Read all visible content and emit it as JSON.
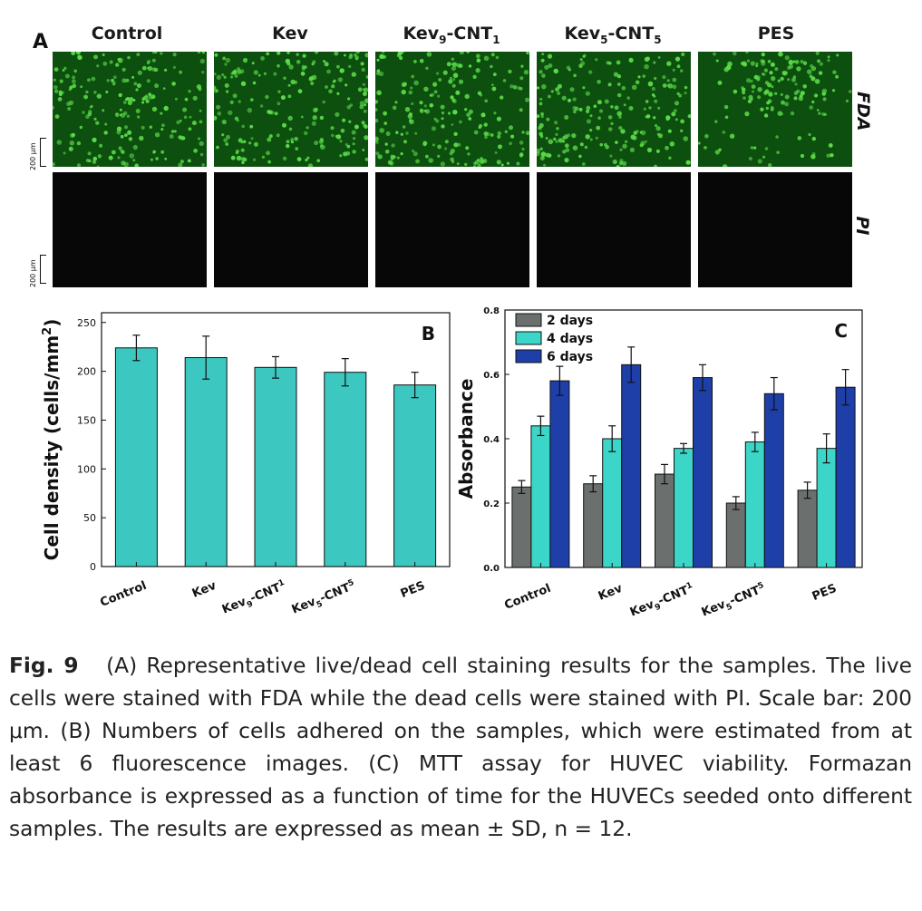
{
  "panel_a": {
    "letter": "A",
    "columns": [
      {
        "main": "Control",
        "sub": "",
        "tail": ""
      },
      {
        "main": "Kev",
        "sub": "",
        "tail": ""
      },
      {
        "main": "Kev",
        "sub": "9",
        "tail": "-CNT",
        "sub2": "1"
      },
      {
        "main": "Kev",
        "sub": "5",
        "tail": "-CNT",
        "sub2": "5"
      },
      {
        "main": "PES",
        "sub": "",
        "tail": ""
      }
    ],
    "row_labels": {
      "fda": "FDA",
      "pi": "PI"
    },
    "scale_label": "200 μm",
    "colors": {
      "fda_background": "#0d4f0f",
      "cell": "#5cdc4a",
      "pi_background": "#070707"
    }
  },
  "chart_data": [
    {
      "type": "bar",
      "panel": "B",
      "ylabel": "Cell density (cells/mm²)",
      "ylabel_main": "Cell density (cells/mm",
      "ylabel_sup": "2",
      "ylabel_close": ")",
      "categories": [
        "Control",
        "Kev",
        "Kev9-CNT1",
        "Kev5-CNT5",
        "PES"
      ],
      "category_labels": [
        {
          "t": "Control"
        },
        {
          "t": "Kev"
        },
        {
          "a": "Kev",
          "s1": "9",
          "b": "-CNT",
          "s2": "1"
        },
        {
          "a": "Kev",
          "s1": "5",
          "b": "-CNT",
          "s2": "5"
        },
        {
          "t": "PES"
        }
      ],
      "values": [
        224,
        214,
        204,
        199,
        186
      ],
      "errors": [
        13,
        22,
        11,
        14,
        13
      ],
      "ylim": [
        0,
        260
      ],
      "yticks": [
        0,
        50,
        100,
        150,
        200,
        250
      ],
      "color": "#3cc8c0"
    },
    {
      "type": "bar",
      "panel": "C",
      "ylabel": "Absorbance",
      "categories": [
        "Control",
        "Kev",
        "Kev9-CNT1",
        "Kev5-CNT5",
        "PES"
      ],
      "category_labels": [
        {
          "t": "Control"
        },
        {
          "t": "Kev"
        },
        {
          "a": "Kev",
          "s1": "9",
          "b": "-CNT",
          "s2": "1"
        },
        {
          "a": "Kev",
          "s1": "5",
          "b": "-CNT",
          "s2": "5"
        },
        {
          "t": "PES"
        }
      ],
      "series": [
        {
          "name": "2 days",
          "values": [
            0.25,
            0.26,
            0.29,
            0.2,
            0.24
          ],
          "errors": [
            0.02,
            0.025,
            0.03,
            0.02,
            0.025
          ],
          "color": "#6b706e"
        },
        {
          "name": "4 days",
          "values": [
            0.44,
            0.4,
            0.37,
            0.39,
            0.37
          ],
          "errors": [
            0.03,
            0.04,
            0.015,
            0.03,
            0.045
          ],
          "color": "#3cd6c8"
        },
        {
          "name": "6 days",
          "values": [
            0.58,
            0.63,
            0.59,
            0.54,
            0.56
          ],
          "errors": [
            0.045,
            0.055,
            0.04,
            0.05,
            0.055
          ],
          "color": "#1f3fa8"
        }
      ],
      "ylim": [
        0,
        0.8
      ],
      "yticks": [
        "0.0",
        "0.2",
        "0.4",
        "0.6",
        "0.8"
      ],
      "legend_position": "top-left"
    }
  ],
  "caption": {
    "fig_label": "Fig. 9",
    "text": "(A) Representative live/dead cell staining results for the samples. The live cells were stained with FDA while the dead cells were stained with PI. Scale bar: 200 μm. (B) Numbers of cells adhered on the samples, which were estimated from at least 6 fluorescence images. (C) MTT assay for HUVEC viability. Formazan absorbance is expressed as a function of time for the HUVECs seeded onto different samples. The results are expressed as mean ± SD, n = 12."
  }
}
